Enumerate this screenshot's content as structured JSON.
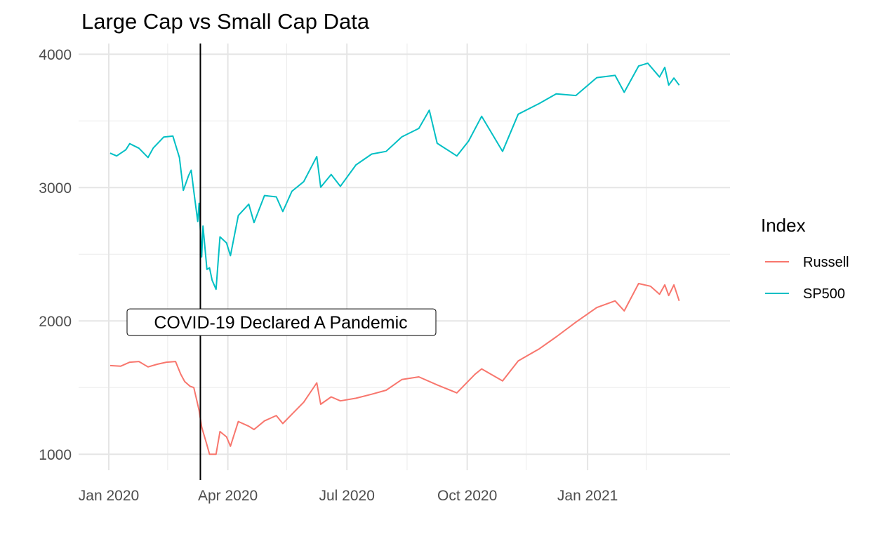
{
  "chart_data": {
    "type": "line",
    "title": "Large Cap vs Small Cap Data",
    "xlabel": "",
    "ylabel": "",
    "xlim": [
      "2020-01-01",
      "2021-03-31"
    ],
    "ylim": [
      880,
      4080
    ],
    "x_ticks": [
      {
        "date": "2020-01-01",
        "label": "Jan 2020"
      },
      {
        "date": "2020-04-01",
        "label": "Apr 2020"
      },
      {
        "date": "2020-07-01",
        "label": "Jul 2020"
      },
      {
        "date": "2020-10-01",
        "label": "Oct 2020"
      },
      {
        "date": "2021-01-01",
        "label": "Jan 2021"
      }
    ],
    "x_minor_ticks": [
      "2020-02-15",
      "2020-05-16",
      "2020-08-16",
      "2020-11-15",
      "2021-02-15"
    ],
    "y_ticks": [
      1000,
      2000,
      3000,
      4000
    ],
    "y_minor_ticks": [
      1500,
      2500,
      3500
    ],
    "grid": true,
    "legend": {
      "title": "Index",
      "position": "right"
    },
    "vline": {
      "date": "2020-03-11",
      "color": "#000000"
    },
    "annotation": {
      "text": "COVID-19 Declared A Pandemic",
      "date": "2020-03-11",
      "y": 1990
    },
    "series": [
      {
        "name": "Russell",
        "color": "#F8766D",
        "points": [
          [
            "2020-01-02",
            1665
          ],
          [
            "2020-01-10",
            1660
          ],
          [
            "2020-01-17",
            1690
          ],
          [
            "2020-01-24",
            1695
          ],
          [
            "2020-01-31",
            1655
          ],
          [
            "2020-02-07",
            1675
          ],
          [
            "2020-02-14",
            1690
          ],
          [
            "2020-02-21",
            1695
          ],
          [
            "2020-02-25",
            1600
          ],
          [
            "2020-02-28",
            1545
          ],
          [
            "2020-03-03",
            1510
          ],
          [
            "2020-03-06",
            1500
          ],
          [
            "2020-03-10",
            1330
          ],
          [
            "2020-03-12",
            1205
          ],
          [
            "2020-03-16",
            1070
          ],
          [
            "2020-03-18",
            1000
          ],
          [
            "2020-03-23",
            1000
          ],
          [
            "2020-03-26",
            1170
          ],
          [
            "2020-03-31",
            1130
          ],
          [
            "2020-04-03",
            1060
          ],
          [
            "2020-04-09",
            1245
          ],
          [
            "2020-04-17",
            1210
          ],
          [
            "2020-04-21",
            1185
          ],
          [
            "2020-04-29",
            1250
          ],
          [
            "2020-05-08",
            1290
          ],
          [
            "2020-05-13",
            1230
          ],
          [
            "2020-05-20",
            1300
          ],
          [
            "2020-05-29",
            1390
          ],
          [
            "2020-06-08",
            1535
          ],
          [
            "2020-06-11",
            1375
          ],
          [
            "2020-06-19",
            1430
          ],
          [
            "2020-06-26",
            1400
          ],
          [
            "2020-07-08",
            1420
          ],
          [
            "2020-07-20",
            1450
          ],
          [
            "2020-07-31",
            1480
          ],
          [
            "2020-08-12",
            1560
          ],
          [
            "2020-08-25",
            1580
          ],
          [
            "2020-09-08",
            1520
          ],
          [
            "2020-09-23",
            1460
          ],
          [
            "2020-10-07",
            1600
          ],
          [
            "2020-10-12",
            1640
          ],
          [
            "2020-10-28",
            1550
          ],
          [
            "2020-11-09",
            1700
          ],
          [
            "2020-11-25",
            1790
          ],
          [
            "2020-12-08",
            1880
          ],
          [
            "2020-12-23",
            1990
          ],
          [
            "2021-01-08",
            2100
          ],
          [
            "2021-01-22",
            2150
          ],
          [
            "2021-01-29",
            2075
          ],
          [
            "2021-02-09",
            2280
          ],
          [
            "2021-02-18",
            2260
          ],
          [
            "2021-02-25",
            2200
          ],
          [
            "2021-03-01",
            2270
          ],
          [
            "2021-03-04",
            2190
          ],
          [
            "2021-03-08",
            2270
          ],
          [
            "2021-03-12",
            2150
          ]
        ]
      },
      {
        "name": "SP500",
        "color": "#00BFC4",
        "points": [
          [
            "2020-01-02",
            3258
          ],
          [
            "2020-01-07",
            3237
          ],
          [
            "2020-01-14",
            3283
          ],
          [
            "2020-01-17",
            3329
          ],
          [
            "2020-01-24",
            3295
          ],
          [
            "2020-01-31",
            3225
          ],
          [
            "2020-02-04",
            3297
          ],
          [
            "2020-02-12",
            3379
          ],
          [
            "2020-02-19",
            3386
          ],
          [
            "2020-02-24",
            3225
          ],
          [
            "2020-02-27",
            2979
          ],
          [
            "2020-03-02",
            3090
          ],
          [
            "2020-03-04",
            3130
          ],
          [
            "2020-03-06",
            2972
          ],
          [
            "2020-03-09",
            2746
          ],
          [
            "2020-03-10",
            2882
          ],
          [
            "2020-03-12",
            2480
          ],
          [
            "2020-03-13",
            2711
          ],
          [
            "2020-03-16",
            2386
          ],
          [
            "2020-03-18",
            2398
          ],
          [
            "2020-03-20",
            2305
          ],
          [
            "2020-03-23",
            2237
          ],
          [
            "2020-03-26",
            2630
          ],
          [
            "2020-03-31",
            2585
          ],
          [
            "2020-04-03",
            2489
          ],
          [
            "2020-04-09",
            2790
          ],
          [
            "2020-04-17",
            2875
          ],
          [
            "2020-04-21",
            2737
          ],
          [
            "2020-04-29",
            2940
          ],
          [
            "2020-05-08",
            2930
          ],
          [
            "2020-05-13",
            2820
          ],
          [
            "2020-05-20",
            2972
          ],
          [
            "2020-05-29",
            3044
          ],
          [
            "2020-06-08",
            3232
          ],
          [
            "2020-06-11",
            3002
          ],
          [
            "2020-06-19",
            3098
          ],
          [
            "2020-06-26",
            3009
          ],
          [
            "2020-07-08",
            3170
          ],
          [
            "2020-07-20",
            3251
          ],
          [
            "2020-07-31",
            3271
          ],
          [
            "2020-08-12",
            3380
          ],
          [
            "2020-08-25",
            3443
          ],
          [
            "2020-09-02",
            3580
          ],
          [
            "2020-09-08",
            3332
          ],
          [
            "2020-09-23",
            3237
          ],
          [
            "2020-10-02",
            3348
          ],
          [
            "2020-10-12",
            3534
          ],
          [
            "2020-10-28",
            3271
          ],
          [
            "2020-11-09",
            3550
          ],
          [
            "2020-11-25",
            3630
          ],
          [
            "2020-12-08",
            3702
          ],
          [
            "2020-12-23",
            3690
          ],
          [
            "2021-01-08",
            3824
          ],
          [
            "2021-01-22",
            3841
          ],
          [
            "2021-01-29",
            3714
          ],
          [
            "2021-02-09",
            3911
          ],
          [
            "2021-02-16",
            3932
          ],
          [
            "2021-02-25",
            3829
          ],
          [
            "2021-03-01",
            3901
          ],
          [
            "2021-03-04",
            3768
          ],
          [
            "2021-03-08",
            3821
          ],
          [
            "2021-03-12",
            3768
          ]
        ]
      }
    ]
  }
}
